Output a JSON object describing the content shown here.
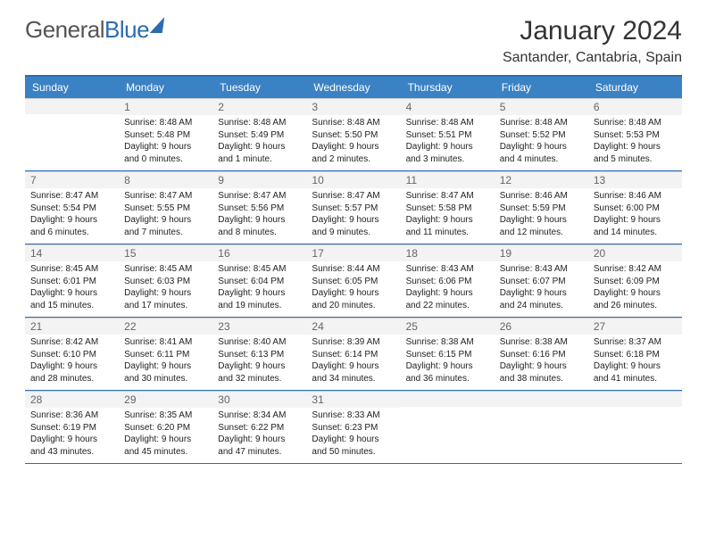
{
  "logo": {
    "text1": "General",
    "text2": "Blue"
  },
  "title": "January 2024",
  "location": "Santander, Cantabria, Spain",
  "colors": {
    "headerBar": "#3b82c4",
    "rule": "#2b6cb0",
    "daynumBg": "#f3f3f3"
  },
  "dayHeaders": [
    "Sunday",
    "Monday",
    "Tuesday",
    "Wednesday",
    "Thursday",
    "Friday",
    "Saturday"
  ],
  "weeks": [
    [
      {
        "n": "",
        "sunrise": "",
        "sunset": "",
        "daylight": ""
      },
      {
        "n": "1",
        "sunrise": "Sunrise: 8:48 AM",
        "sunset": "Sunset: 5:48 PM",
        "daylight": "Daylight: 9 hours and 0 minutes."
      },
      {
        "n": "2",
        "sunrise": "Sunrise: 8:48 AM",
        "sunset": "Sunset: 5:49 PM",
        "daylight": "Daylight: 9 hours and 1 minute."
      },
      {
        "n": "3",
        "sunrise": "Sunrise: 8:48 AM",
        "sunset": "Sunset: 5:50 PM",
        "daylight": "Daylight: 9 hours and 2 minutes."
      },
      {
        "n": "4",
        "sunrise": "Sunrise: 8:48 AM",
        "sunset": "Sunset: 5:51 PM",
        "daylight": "Daylight: 9 hours and 3 minutes."
      },
      {
        "n": "5",
        "sunrise": "Sunrise: 8:48 AM",
        "sunset": "Sunset: 5:52 PM",
        "daylight": "Daylight: 9 hours and 4 minutes."
      },
      {
        "n": "6",
        "sunrise": "Sunrise: 8:48 AM",
        "sunset": "Sunset: 5:53 PM",
        "daylight": "Daylight: 9 hours and 5 minutes."
      }
    ],
    [
      {
        "n": "7",
        "sunrise": "Sunrise: 8:47 AM",
        "sunset": "Sunset: 5:54 PM",
        "daylight": "Daylight: 9 hours and 6 minutes."
      },
      {
        "n": "8",
        "sunrise": "Sunrise: 8:47 AM",
        "sunset": "Sunset: 5:55 PM",
        "daylight": "Daylight: 9 hours and 7 minutes."
      },
      {
        "n": "9",
        "sunrise": "Sunrise: 8:47 AM",
        "sunset": "Sunset: 5:56 PM",
        "daylight": "Daylight: 9 hours and 8 minutes."
      },
      {
        "n": "10",
        "sunrise": "Sunrise: 8:47 AM",
        "sunset": "Sunset: 5:57 PM",
        "daylight": "Daylight: 9 hours and 9 minutes."
      },
      {
        "n": "11",
        "sunrise": "Sunrise: 8:47 AM",
        "sunset": "Sunset: 5:58 PM",
        "daylight": "Daylight: 9 hours and 11 minutes."
      },
      {
        "n": "12",
        "sunrise": "Sunrise: 8:46 AM",
        "sunset": "Sunset: 5:59 PM",
        "daylight": "Daylight: 9 hours and 12 minutes."
      },
      {
        "n": "13",
        "sunrise": "Sunrise: 8:46 AM",
        "sunset": "Sunset: 6:00 PM",
        "daylight": "Daylight: 9 hours and 14 minutes."
      }
    ],
    [
      {
        "n": "14",
        "sunrise": "Sunrise: 8:45 AM",
        "sunset": "Sunset: 6:01 PM",
        "daylight": "Daylight: 9 hours and 15 minutes."
      },
      {
        "n": "15",
        "sunrise": "Sunrise: 8:45 AM",
        "sunset": "Sunset: 6:03 PM",
        "daylight": "Daylight: 9 hours and 17 minutes."
      },
      {
        "n": "16",
        "sunrise": "Sunrise: 8:45 AM",
        "sunset": "Sunset: 6:04 PM",
        "daylight": "Daylight: 9 hours and 19 minutes."
      },
      {
        "n": "17",
        "sunrise": "Sunrise: 8:44 AM",
        "sunset": "Sunset: 6:05 PM",
        "daylight": "Daylight: 9 hours and 20 minutes."
      },
      {
        "n": "18",
        "sunrise": "Sunrise: 8:43 AM",
        "sunset": "Sunset: 6:06 PM",
        "daylight": "Daylight: 9 hours and 22 minutes."
      },
      {
        "n": "19",
        "sunrise": "Sunrise: 8:43 AM",
        "sunset": "Sunset: 6:07 PM",
        "daylight": "Daylight: 9 hours and 24 minutes."
      },
      {
        "n": "20",
        "sunrise": "Sunrise: 8:42 AM",
        "sunset": "Sunset: 6:09 PM",
        "daylight": "Daylight: 9 hours and 26 minutes."
      }
    ],
    [
      {
        "n": "21",
        "sunrise": "Sunrise: 8:42 AM",
        "sunset": "Sunset: 6:10 PM",
        "daylight": "Daylight: 9 hours and 28 minutes."
      },
      {
        "n": "22",
        "sunrise": "Sunrise: 8:41 AM",
        "sunset": "Sunset: 6:11 PM",
        "daylight": "Daylight: 9 hours and 30 minutes."
      },
      {
        "n": "23",
        "sunrise": "Sunrise: 8:40 AM",
        "sunset": "Sunset: 6:13 PM",
        "daylight": "Daylight: 9 hours and 32 minutes."
      },
      {
        "n": "24",
        "sunrise": "Sunrise: 8:39 AM",
        "sunset": "Sunset: 6:14 PM",
        "daylight": "Daylight: 9 hours and 34 minutes."
      },
      {
        "n": "25",
        "sunrise": "Sunrise: 8:38 AM",
        "sunset": "Sunset: 6:15 PM",
        "daylight": "Daylight: 9 hours and 36 minutes."
      },
      {
        "n": "26",
        "sunrise": "Sunrise: 8:38 AM",
        "sunset": "Sunset: 6:16 PM",
        "daylight": "Daylight: 9 hours and 38 minutes."
      },
      {
        "n": "27",
        "sunrise": "Sunrise: 8:37 AM",
        "sunset": "Sunset: 6:18 PM",
        "daylight": "Daylight: 9 hours and 41 minutes."
      }
    ],
    [
      {
        "n": "28",
        "sunrise": "Sunrise: 8:36 AM",
        "sunset": "Sunset: 6:19 PM",
        "daylight": "Daylight: 9 hours and 43 minutes."
      },
      {
        "n": "29",
        "sunrise": "Sunrise: 8:35 AM",
        "sunset": "Sunset: 6:20 PM",
        "daylight": "Daylight: 9 hours and 45 minutes."
      },
      {
        "n": "30",
        "sunrise": "Sunrise: 8:34 AM",
        "sunset": "Sunset: 6:22 PM",
        "daylight": "Daylight: 9 hours and 47 minutes."
      },
      {
        "n": "31",
        "sunrise": "Sunrise: 8:33 AM",
        "sunset": "Sunset: 6:23 PM",
        "daylight": "Daylight: 9 hours and 50 minutes."
      },
      {
        "n": "",
        "sunrise": "",
        "sunset": "",
        "daylight": ""
      },
      {
        "n": "",
        "sunrise": "",
        "sunset": "",
        "daylight": ""
      },
      {
        "n": "",
        "sunrise": "",
        "sunset": "",
        "daylight": ""
      }
    ]
  ]
}
